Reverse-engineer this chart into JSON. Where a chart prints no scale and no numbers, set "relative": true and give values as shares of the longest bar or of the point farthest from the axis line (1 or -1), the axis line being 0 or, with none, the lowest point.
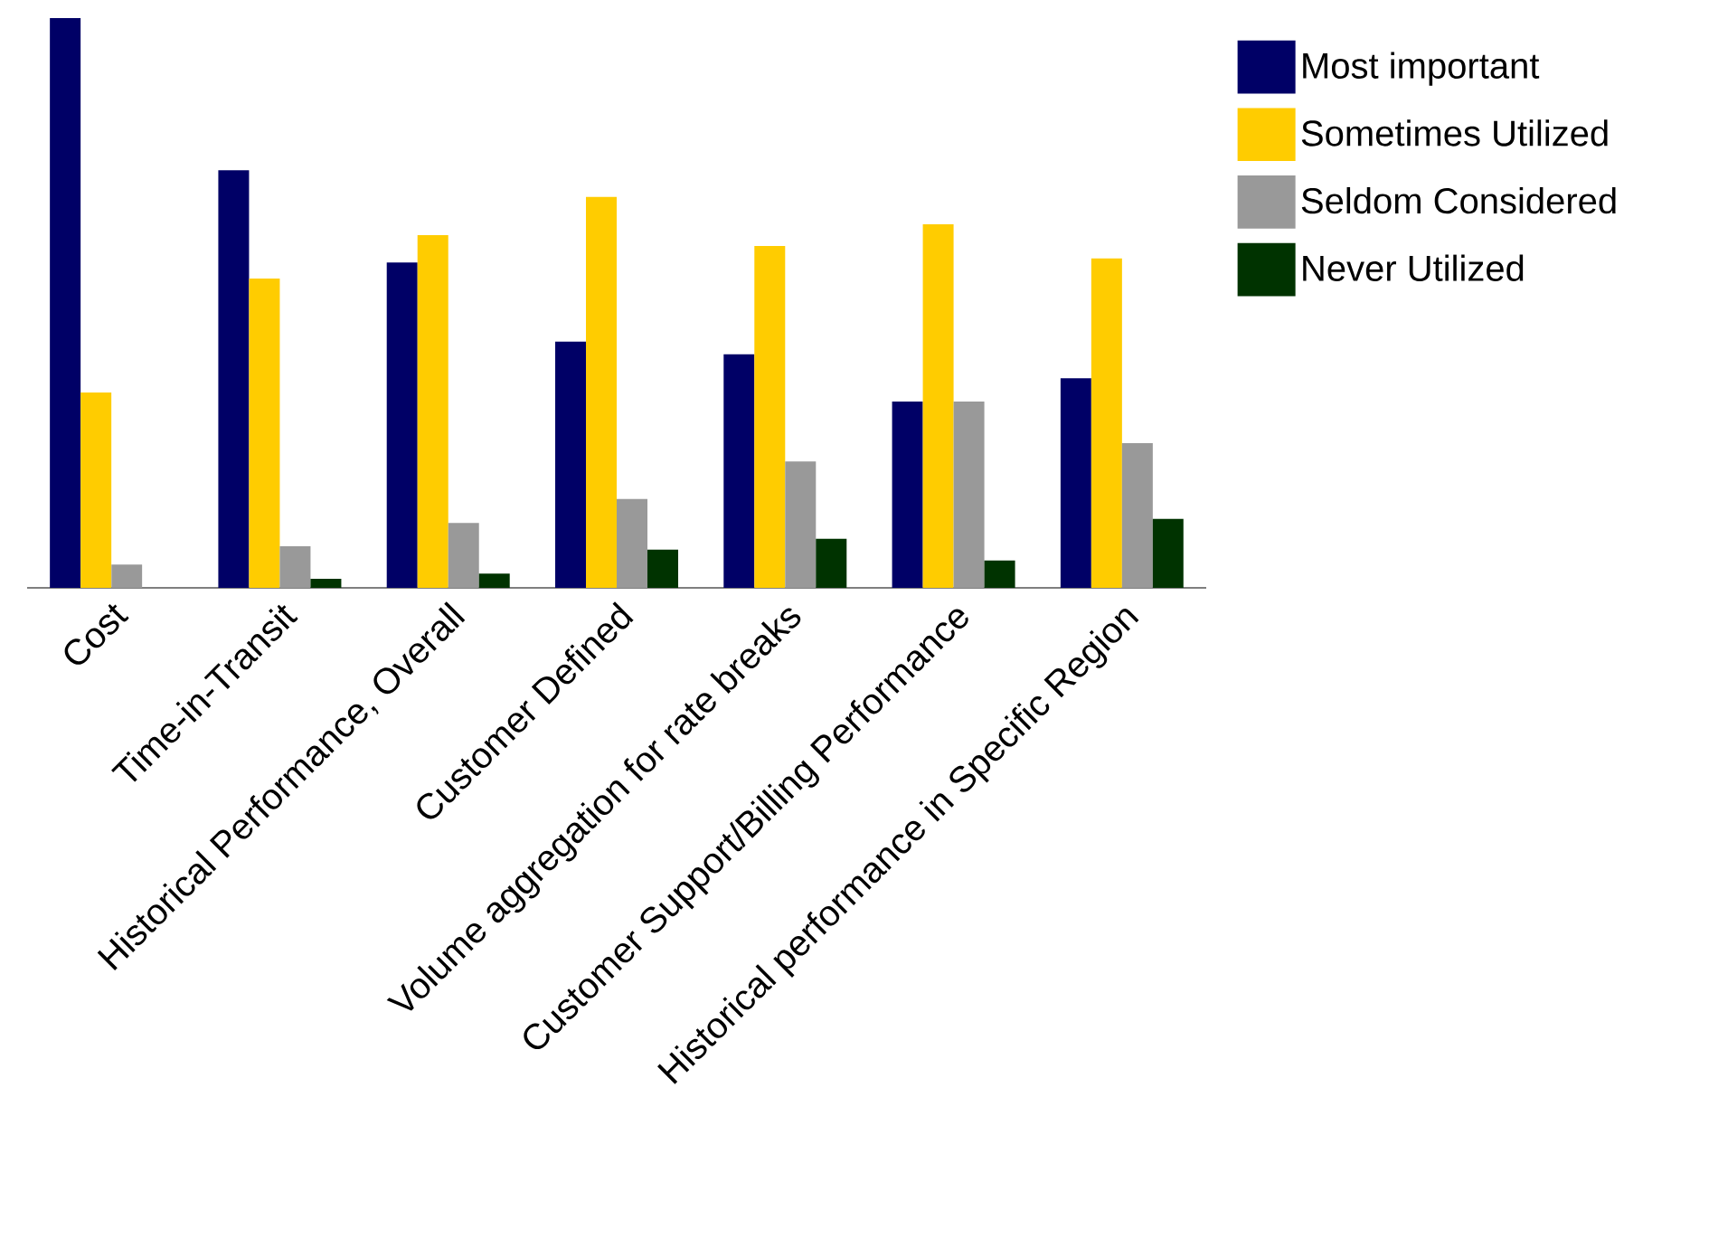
{
  "chart_data": {
    "type": "bar",
    "relative": true,
    "categories": [
      "Cost",
      "Time-in-Transit",
      "Historical Performance, Overall",
      "Customer Defined",
      "Volume aggregation for rate breaks",
      "Customer Support/Billing Performance",
      "Historical performance in Specific Region"
    ],
    "series": [
      {
        "name": "Most important",
        "color": "#000066",
        "values": [
          1.0,
          0.733,
          0.571,
          0.432,
          0.41,
          0.327,
          0.368
        ]
      },
      {
        "name": "Sometimes Utilized",
        "color": "#ffcc00",
        "values": [
          0.343,
          0.543,
          0.619,
          0.686,
          0.6,
          0.638,
          0.578
        ]
      },
      {
        "name": "Seldom Considered",
        "color": "#999999",
        "values": [
          0.041,
          0.073,
          0.114,
          0.156,
          0.222,
          0.327,
          0.254
        ]
      },
      {
        "name": "Never Utilized",
        "color": "#003300",
        "values": [
          0,
          0.016,
          0.025,
          0.067,
          0.086,
          0.048,
          0.121
        ]
      }
    ],
    "legend": "top right"
  }
}
